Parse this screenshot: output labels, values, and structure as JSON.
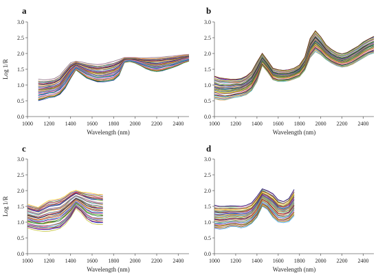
{
  "figure": {
    "panels": [
      "a",
      "b",
      "c",
      "d"
    ]
  },
  "chart_data": [
    {
      "panel": "a",
      "type": "line",
      "xlabel": "Wavelength (nm)",
      "ylabel": "Log 1/R",
      "xlim": [
        1000,
        2500
      ],
      "ylim": [
        0.0,
        3.0
      ],
      "xticks": [
        1000,
        1200,
        1400,
        1600,
        1800,
        2000,
        2200,
        2400
      ],
      "yticks": [
        "0.0",
        "0.5",
        "1.0",
        "1.5",
        "2.0",
        "2.5",
        "3.0"
      ],
      "x": [
        1100,
        1150,
        1200,
        1250,
        1300,
        1350,
        1400,
        1450,
        1500,
        1550,
        1600,
        1650,
        1700,
        1750,
        1800,
        1850,
        1900,
        1950,
        2000,
        2050,
        2100,
        2150,
        2200,
        2250,
        2300,
        2350,
        2400,
        2450,
        2500
      ],
      "series_summary": {
        "count": 40,
        "upper": [
          1.18,
          1.15,
          1.17,
          1.2,
          1.3,
          1.5,
          1.7,
          1.75,
          1.72,
          1.68,
          1.66,
          1.64,
          1.66,
          1.7,
          1.74,
          1.8,
          1.86,
          1.86,
          1.86,
          1.85,
          1.85,
          1.86,
          1.87,
          1.88,
          1.9,
          1.91,
          1.93,
          1.95,
          1.96
        ],
        "lower": [
          0.5,
          0.55,
          0.6,
          0.62,
          0.7,
          0.9,
          1.2,
          1.48,
          1.35,
          1.22,
          1.15,
          1.1,
          1.1,
          1.12,
          1.15,
          1.3,
          1.72,
          1.75,
          1.7,
          1.62,
          1.52,
          1.45,
          1.42,
          1.45,
          1.5,
          1.55,
          1.62,
          1.7,
          1.76
        ]
      }
    },
    {
      "panel": "b",
      "type": "line",
      "xlabel": "Wavelength (nm)",
      "ylabel": "",
      "xlim": [
        1000,
        2500
      ],
      "ylim": [
        0.0,
        3.0
      ],
      "xticks": [
        1000,
        1200,
        1400,
        1600,
        1800,
        2000,
        2200,
        2400
      ],
      "yticks": [
        "0.0",
        "0.5",
        "1.0",
        "1.5",
        "2.0",
        "2.5",
        "3.0"
      ],
      "x": [
        1000,
        1050,
        1100,
        1150,
        1200,
        1250,
        1300,
        1350,
        1400,
        1450,
        1500,
        1550,
        1600,
        1650,
        1700,
        1750,
        1800,
        1850,
        1900,
        1950,
        2000,
        2050,
        2100,
        2150,
        2200,
        2250,
        2300,
        2350,
        2400,
        2450,
        2500
      ],
      "series_summary": {
        "count": 40,
        "upper": [
          1.3,
          1.25,
          1.22,
          1.2,
          1.2,
          1.22,
          1.3,
          1.45,
          1.75,
          2.02,
          1.8,
          1.55,
          1.5,
          1.48,
          1.5,
          1.55,
          1.65,
          1.9,
          2.5,
          2.75,
          2.55,
          2.3,
          2.15,
          2.05,
          2.0,
          2.05,
          2.15,
          2.25,
          2.38,
          2.48,
          2.56
        ],
        "lower": [
          0.55,
          0.52,
          0.52,
          0.55,
          0.6,
          0.62,
          0.68,
          0.8,
          1.1,
          1.6,
          1.4,
          1.15,
          1.1,
          1.1,
          1.12,
          1.18,
          1.25,
          1.45,
          1.85,
          2.05,
          1.95,
          1.8,
          1.68,
          1.6,
          1.55,
          1.58,
          1.65,
          1.75,
          1.85,
          1.95,
          2.0
        ]
      }
    },
    {
      "panel": "c",
      "type": "line",
      "xlabel": "Wavelength (nm)",
      "ylabel": "Log 1/R",
      "xlim": [
        1000,
        2500
      ],
      "ylim": [
        0.0,
        3.0
      ],
      "xticks": [
        1000,
        1200,
        1400,
        1600,
        1800,
        2000,
        2200,
        2400
      ],
      "yticks": [
        "0.0",
        "0.5",
        "1.0",
        "1.5",
        "2.0",
        "2.5",
        "3.0"
      ],
      "x": [
        1000,
        1050,
        1100,
        1150,
        1200,
        1250,
        1300,
        1350,
        1400,
        1450,
        1500,
        1550,
        1600,
        1650,
        1700
      ],
      "series_summary": {
        "count": 40,
        "upper": [
          1.58,
          1.52,
          1.48,
          1.6,
          1.7,
          1.72,
          1.75,
          1.85,
          1.97,
          2.02,
          1.98,
          1.95,
          1.92,
          1.9,
          1.88
        ],
        "lower": [
          0.82,
          0.78,
          0.75,
          0.72,
          0.72,
          0.75,
          0.8,
          0.95,
          1.15,
          1.45,
          1.3,
          1.08,
          0.98,
          0.95,
          0.95
        ]
      }
    },
    {
      "panel": "d",
      "type": "line",
      "xlabel": "Wavelength (nm)",
      "ylabel": "",
      "xlim": [
        1000,
        2500
      ],
      "ylim": [
        0.0,
        3.0
      ],
      "xticks": [
        1000,
        1200,
        1400,
        1600,
        1800,
        2000,
        2200,
        2400
      ],
      "yticks": [
        "0.0",
        "0.5",
        "1.0",
        "1.5",
        "2.0",
        "2.5",
        "3.0"
      ],
      "x": [
        1000,
        1050,
        1100,
        1150,
        1200,
        1250,
        1300,
        1350,
        1400,
        1450,
        1500,
        1550,
        1600,
        1650,
        1700,
        1750
      ],
      "series_summary": {
        "count": 40,
        "upper": [
          1.52,
          1.5,
          1.5,
          1.5,
          1.5,
          1.5,
          1.52,
          1.6,
          1.8,
          2.05,
          1.98,
          1.9,
          1.7,
          1.65,
          1.75,
          2.02
        ],
        "lower": [
          0.8,
          0.78,
          0.8,
          0.85,
          0.85,
          0.82,
          0.85,
          0.95,
          1.15,
          1.5,
          1.4,
          1.15,
          1.0,
          0.98,
          1.02,
          1.2
        ]
      }
    }
  ]
}
